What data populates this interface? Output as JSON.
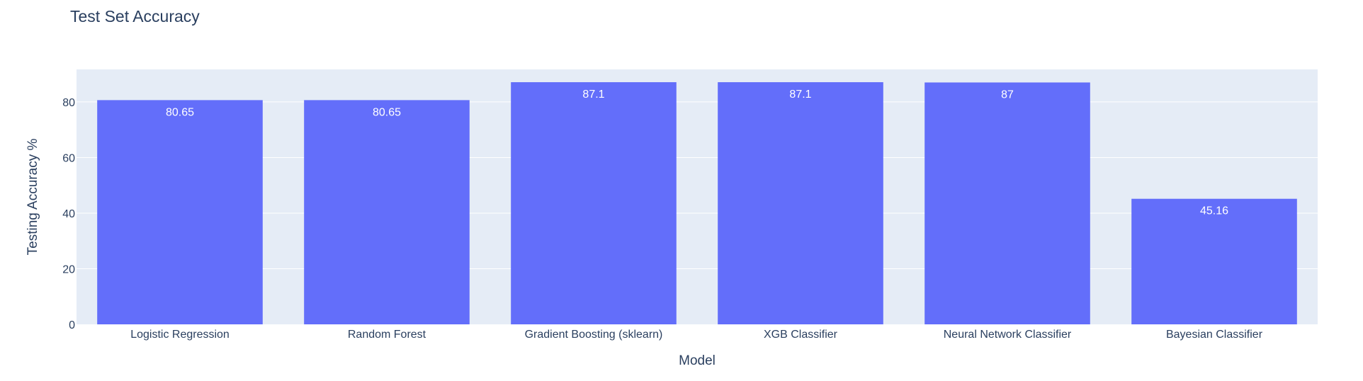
{
  "chart_data": {
    "type": "bar",
    "title": "Test Set Accuracy",
    "xlabel": "Model",
    "ylabel": "Testing Accuracy %",
    "categories": [
      "Logistic Regression",
      "Random Forest",
      "Gradient Boosting (sklearn)",
      "XGB Classifier",
      "Neural Network Classifier",
      "Bayesian Classifier"
    ],
    "values": [
      80.65,
      80.65,
      87.1,
      87.1,
      87,
      45.16
    ],
    "data_labels": [
      "80.65",
      "80.65",
      "87.1",
      "87.1",
      "87",
      "45.16"
    ],
    "ylim": [
      0,
      91.7
    ],
    "yticks": [
      0,
      20,
      40,
      60,
      80
    ],
    "grid": true,
    "bar_color": "#636efa",
    "plot_bg": "#e5ecf6",
    "text_color": "#2a3f5f"
  }
}
